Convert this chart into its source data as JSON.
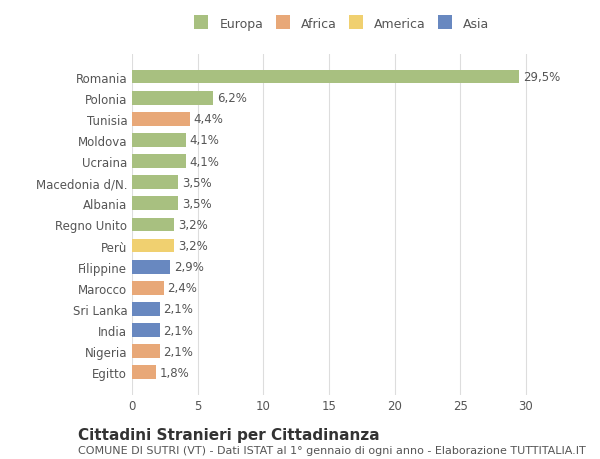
{
  "categories": [
    "Romania",
    "Polonia",
    "Tunisia",
    "Moldova",
    "Ucraina",
    "Macedonia d/N.",
    "Albania",
    "Regno Unito",
    "Perù",
    "Filippine",
    "Marocco",
    "Sri Lanka",
    "India",
    "Nigeria",
    "Egitto"
  ],
  "values": [
    29.5,
    6.2,
    4.4,
    4.1,
    4.1,
    3.5,
    3.5,
    3.2,
    3.2,
    2.9,
    2.4,
    2.1,
    2.1,
    2.1,
    1.8
  ],
  "labels": [
    "29,5%",
    "6,2%",
    "4,4%",
    "4,1%",
    "4,1%",
    "3,5%",
    "3,5%",
    "3,2%",
    "3,2%",
    "2,9%",
    "2,4%",
    "2,1%",
    "2,1%",
    "2,1%",
    "1,8%"
  ],
  "continents": [
    "Europa",
    "Europa",
    "Africa",
    "Europa",
    "Europa",
    "Europa",
    "Europa",
    "Europa",
    "America",
    "Asia",
    "Africa",
    "Asia",
    "Asia",
    "Africa",
    "Africa"
  ],
  "continent_colors": {
    "Europa": "#a8c080",
    "Africa": "#e8a878",
    "America": "#f0d070",
    "Asia": "#6888c0"
  },
  "legend_order": [
    "Europa",
    "Africa",
    "America",
    "Asia"
  ],
  "title": "Cittadini Stranieri per Cittadinanza",
  "subtitle": "COMUNE DI SUTRI (VT) - Dati ISTAT al 1° gennaio di ogni anno - Elaborazione TUTTITALIA.IT",
  "xlim": [
    0,
    32
  ],
  "xticks": [
    0,
    5,
    10,
    15,
    20,
    25,
    30
  ],
  "background_color": "#ffffff",
  "grid_color": "#dddddd",
  "bar_height": 0.65,
  "label_fontsize": 8.5,
  "title_fontsize": 11,
  "subtitle_fontsize": 8,
  "tick_fontsize": 8.5,
  "legend_fontsize": 9
}
